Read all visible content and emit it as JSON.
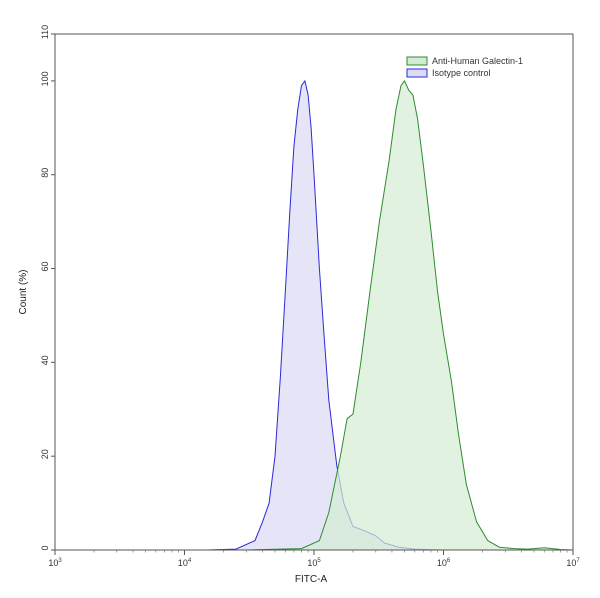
{
  "chart_data": {
    "type": "area",
    "title": "",
    "xlabel": "FITC-A",
    "ylabel": "Count  (%)",
    "x_scale": "log10",
    "xlim": [
      1000,
      10000000
    ],
    "ylim": [
      0,
      110
    ],
    "x_ticks": [
      {
        "value": 1000,
        "base": "10",
        "exp": "3"
      },
      {
        "value": 10000,
        "base": "10",
        "exp": "4"
      },
      {
        "value": 100000,
        "base": "10",
        "exp": "5"
      },
      {
        "value": 1000000,
        "base": "10",
        "exp": "6"
      },
      {
        "value": 10000000,
        "base": "10",
        "exp": "7"
      }
    ],
    "y_ticks": [
      "0",
      "20",
      "40",
      "60",
      "80",
      "100",
      "110"
    ],
    "legend_position": "top-right",
    "grid": false,
    "series": [
      {
        "name": "Anti-Human Galectin-1",
        "color": "#2e8b2e",
        "fill": "#d4ecd4",
        "x": [
          3000,
          30000,
          80000,
          110000,
          130000,
          160000,
          180000,
          200000,
          230000,
          270000,
          320000,
          380000,
          430000,
          470000,
          500000,
          540000,
          580000,
          630000,
          700000,
          800000,
          900000,
          1000000,
          1150000,
          1300000,
          1500000,
          1800000,
          2200000,
          2700000,
          3500000,
          4500000,
          6000000,
          8000000,
          10000000
        ],
        "y": [
          0,
          0,
          0.3,
          2,
          8,
          20,
          28,
          29,
          40,
          55,
          70,
          83,
          94,
          99,
          100,
          98,
          97,
          92,
          82,
          68,
          55,
          46,
          36,
          25,
          14,
          6,
          2,
          0.6,
          0.3,
          0.2,
          0.5,
          0.1,
          0
        ]
      },
      {
        "name": "Isotype control",
        "color": "#2a2ad8",
        "fill": "#dcdcf4",
        "x": [
          3000,
          15000,
          25000,
          35000,
          40000,
          45000,
          50000,
          55000,
          60000,
          65000,
          70000,
          75000,
          80000,
          85000,
          90000,
          95000,
          100000,
          110000,
          120000,
          130000,
          150000,
          170000,
          200000,
          250000,
          300000,
          350000,
          450000,
          600000,
          1000000,
          10000000
        ],
        "y": [
          0,
          0,
          0.2,
          2,
          6,
          10,
          20,
          37,
          55,
          72,
          86,
          94,
          99,
          100,
          97,
          90,
          80,
          60,
          45,
          32,
          18,
          10,
          5,
          4,
          3,
          1.5,
          0.6,
          0.2,
          0,
          0
        ]
      }
    ]
  }
}
